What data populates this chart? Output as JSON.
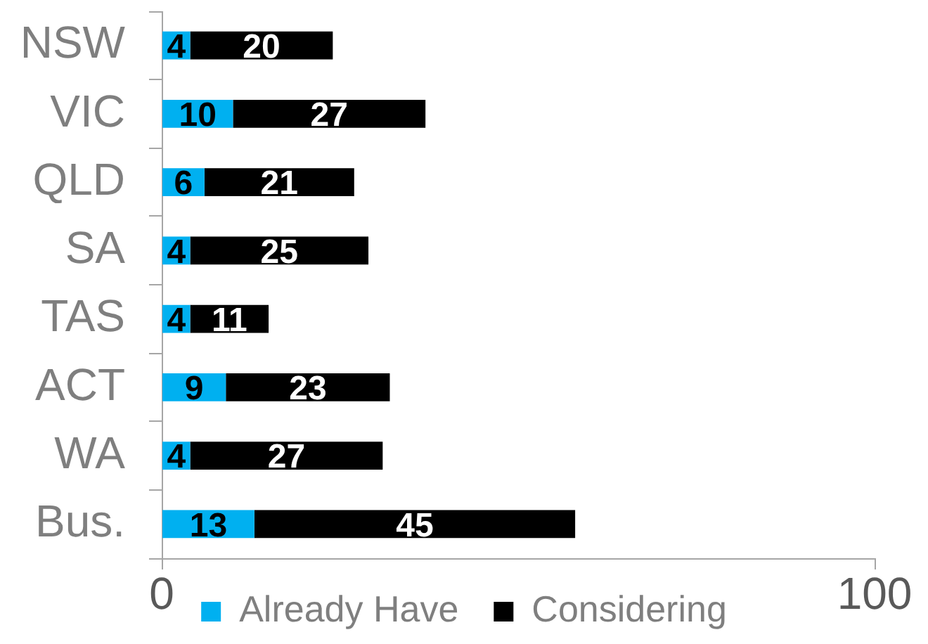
{
  "chart_data": {
    "type": "bar",
    "orientation": "horizontal",
    "stacked": true,
    "categories": [
      "NSW",
      "VIC",
      "QLD",
      "SA",
      "TAS",
      "ACT",
      "WA",
      "Bus."
    ],
    "series": [
      {
        "name": "Already Have",
        "color": "#00b0f0",
        "values": [
          4,
          10,
          6,
          4,
          4,
          9,
          4,
          13
        ]
      },
      {
        "name": "Considering",
        "color": "#000000",
        "values": [
          20,
          27,
          21,
          25,
          11,
          23,
          27,
          45
        ]
      }
    ],
    "xlim": [
      0,
      100
    ],
    "xticks": [
      0,
      100
    ],
    "grid": false,
    "legend": "bottom",
    "data_labels": true
  }
}
